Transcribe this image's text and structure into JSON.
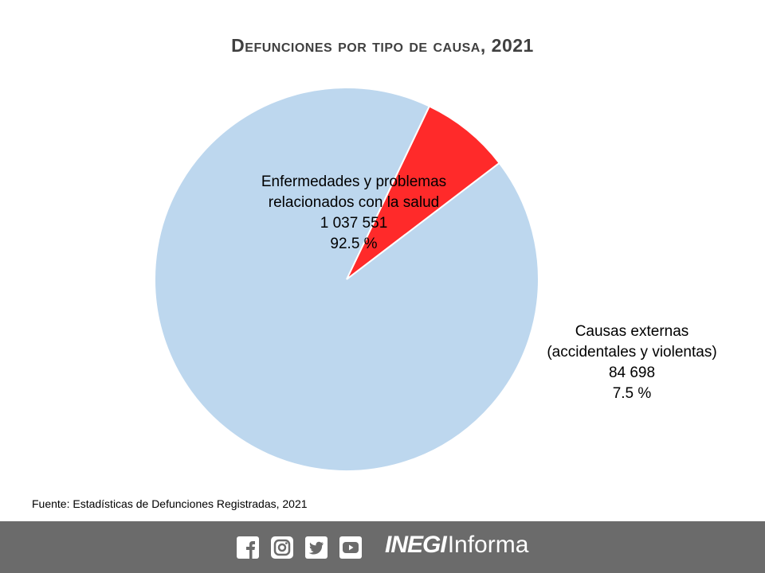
{
  "title": "Defunciones por tipo de causa, 2021",
  "chart_data": {
    "type": "pie",
    "title": "Defunciones por tipo de causa, 2021",
    "slices": [
      {
        "label_lines": [
          "Enfermedades  y problemas",
          "relacionados con la salud"
        ],
        "value": 1037551,
        "value_text": "1 037 551",
        "percent": 92.5,
        "percent_text": "92.5 %",
        "color": "#bdd7ee"
      },
      {
        "label_lines": [
          "Causas externas",
          "(accidentales y violentas)"
        ],
        "value": 84698,
        "value_text": "84 698",
        "percent": 7.5,
        "percent_text": "7.5 %",
        "color": "#ff2a2a"
      }
    ]
  },
  "source": "Fuente: Estadísticas de Defunciones Registradas, 2021",
  "footer": {
    "icons": [
      "facebook-icon",
      "instagram-icon",
      "twitter-icon",
      "youtube-icon"
    ],
    "logo_strong": "INEGI",
    "logo_light": "Informa",
    "background": "#6b6b6b"
  }
}
